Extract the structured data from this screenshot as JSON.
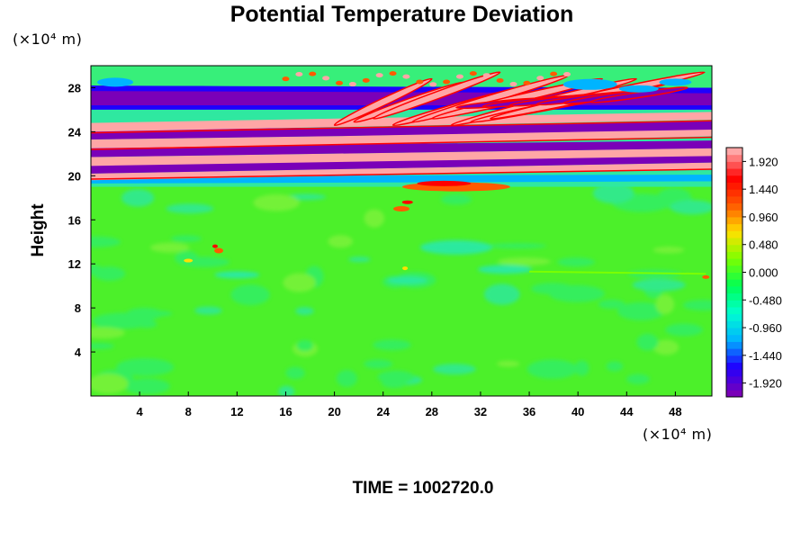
{
  "chart_data": {
    "type": "heatmap",
    "title": "Potential Temperature Deviation",
    "ylabel": "Height",
    "xlabel": "",
    "x_unit_label": "(×10⁴ m)",
    "y_unit_label": "(×10⁴ m)",
    "xlim": [
      0,
      51
    ],
    "ylim": [
      0,
      30
    ],
    "x_ticks": [
      4,
      8,
      12,
      16,
      20,
      24,
      28,
      32,
      36,
      40,
      44,
      48
    ],
    "y_ticks": [
      4,
      8,
      12,
      16,
      20,
      24,
      28
    ],
    "colorbar": {
      "range": [
        -2.16,
        2.16
      ],
      "tick_labels": [
        "1.920",
        "1.440",
        "0.960",
        "0.480",
        "0.000",
        "-0.480",
        "-0.960",
        "-1.440",
        "-1.920"
      ],
      "tick_values": [
        1.92,
        1.44,
        0.96,
        0.48,
        0.0,
        -0.48,
        -0.96,
        -1.44,
        -1.92
      ],
      "colors": [
        "#7a00b8",
        "#1f00ff",
        "#00b4ff",
        "#00ffd0",
        "#00ff55",
        "#7bff00",
        "#ffe000",
        "#ff5a00",
        "#ff0000",
        "#ffa6a6"
      ]
    },
    "features": [
      {
        "description": "alternating positive/negative bands",
        "y_range": [
          19,
          29
        ]
      },
      {
        "description": "near-zero field",
        "y_range": [
          0,
          19
        ]
      }
    ],
    "footer": "TIME = 1002720.0"
  },
  "colors": {
    "background": "#ffffff",
    "field": "#4cf02a"
  }
}
